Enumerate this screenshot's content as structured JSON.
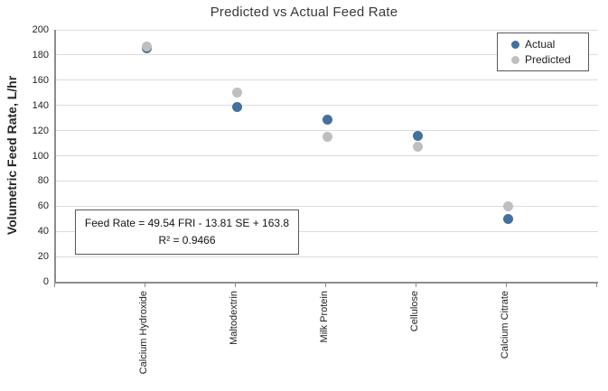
{
  "chart_data": {
    "type": "scatter",
    "title": "Predicted vs Actual Feed Rate",
    "ylabel": "Volumetric Feed Rate, L/hr",
    "xlabel": "",
    "categories": [
      "Calcium Hydroxide",
      "Maltodextrin",
      "Milk Protein",
      "Cellulose",
      "Calcium Citrate"
    ],
    "series": [
      {
        "name": "Actual",
        "color": "#41719C",
        "values": [
          185,
          139,
          129,
          116,
          50
        ]
      },
      {
        "name": "Predicted",
        "color": "#BFBFBF",
        "values": [
          187,
          150,
          115,
          107,
          60
        ]
      }
    ],
    "ylim": [
      0,
      200
    ],
    "yticks": [
      0,
      20,
      40,
      60,
      80,
      100,
      120,
      140,
      160,
      180,
      200
    ],
    "grid": true,
    "legend_position": "top-right",
    "annotation": {
      "line1": "Feed Rate = 49.54 FRI - 13.81 SE + 163.8",
      "line2": "R² = 0.9466"
    }
  }
}
